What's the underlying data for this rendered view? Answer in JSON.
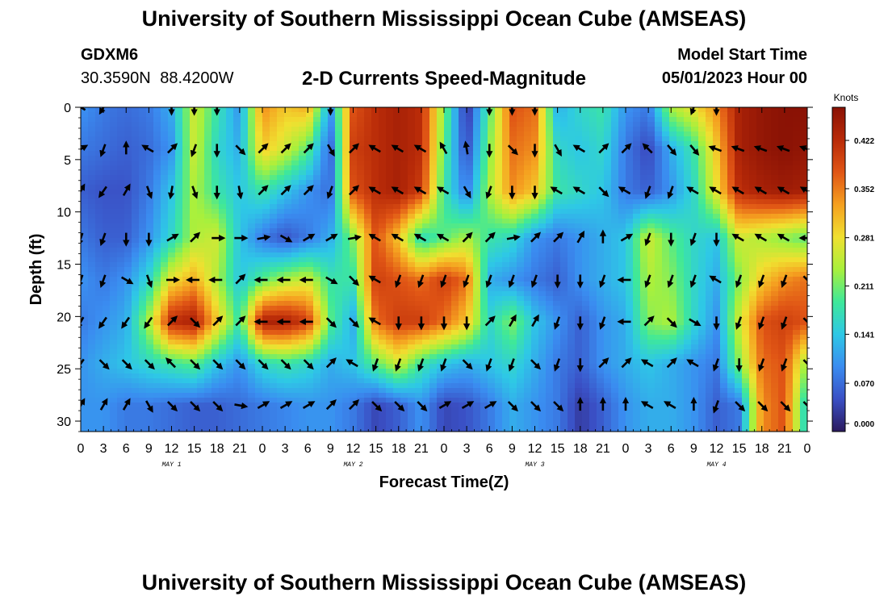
{
  "header": {
    "title": "University of Southern Mississippi Ocean Cube (AMSEAS)",
    "station_id": "GDXM6",
    "coordinates": "30.3590N 88.4200W",
    "chart_title": "2-D Currents Speed-Magnitude",
    "model_start_label": "Model Start Time",
    "model_start_value": "05/01/2023 Hour 00"
  },
  "footer": {
    "title": "University of Southern Mississippi Ocean Cube (AMSEAS)"
  },
  "chart_data": {
    "type": "heatmap",
    "xlabel": "Forecast Time(Z)",
    "ylabel": "Depth (ft)",
    "x_ticks": [
      "0",
      "3",
      "6",
      "9",
      "12",
      "15",
      "18",
      "21",
      "0",
      "3",
      "6",
      "9",
      "12",
      "15",
      "18",
      "21",
      "0",
      "3",
      "6",
      "9",
      "12",
      "15",
      "18",
      "21",
      "0",
      "3",
      "6",
      "9",
      "12",
      "15",
      "18",
      "21",
      "0"
    ],
    "x_range_hours": [
      0,
      96
    ],
    "day_labels": [
      {
        "label": "MAY 1",
        "hour": 12
      },
      {
        "label": "MAY 2",
        "hour": 36
      },
      {
        "label": "MAY 3",
        "hour": 60
      },
      {
        "label": "MAY 4",
        "hour": 84
      }
    ],
    "y_ticks": [
      0,
      5,
      10,
      15,
      20,
      25,
      30
    ],
    "y_range_ft": [
      0,
      31
    ],
    "colorbar": {
      "unit": "Knots",
      "tick_labels": [
        "0.422",
        "0.352",
        "0.281",
        "0.211",
        "0.141",
        "0.070",
        "0.000"
      ],
      "vmin": 0.0,
      "vmax": 0.47,
      "colormap": [
        "#2b1a5e",
        "#3a4fc4",
        "#3a8cf0",
        "#2ec8e6",
        "#3ee89a",
        "#a8f03c",
        "#f0e030",
        "#f5a020",
        "#e05515",
        "#b82a08",
        "#8a1205"
      ]
    },
    "vector_depths_ft": [
      0,
      4,
      8,
      12.5,
      16.5,
      20.5,
      24.5,
      28.5
    ],
    "vector_hours": [
      0,
      3,
      6,
      9,
      12,
      15,
      18,
      21,
      24,
      27,
      30,
      33,
      36,
      39,
      42,
      45,
      48,
      51,
      54,
      57,
      60,
      63,
      66,
      69,
      72,
      75,
      78,
      81,
      84,
      87,
      90,
      93,
      96
    ],
    "speed_knots_by_depth": [
      [
        0.1,
        0.08,
        0.07,
        0.08,
        0.12,
        0.26,
        0.18,
        0.1,
        0.34,
        0.3,
        0.32,
        0.1,
        0.38,
        0.42,
        0.44,
        0.42,
        0.22,
        0.02,
        0.2,
        0.38,
        0.36,
        0.12,
        0.16,
        0.18,
        0.1,
        0.08,
        0.24,
        0.28,
        0.34,
        0.44,
        0.46,
        0.47,
        0.47
      ],
      [
        0.08,
        0.07,
        0.06,
        0.07,
        0.1,
        0.26,
        0.16,
        0.12,
        0.3,
        0.26,
        0.2,
        0.06,
        0.4,
        0.42,
        0.44,
        0.42,
        0.2,
        0.04,
        0.22,
        0.36,
        0.34,
        0.16,
        0.14,
        0.16,
        0.08,
        0.04,
        0.12,
        0.18,
        0.3,
        0.44,
        0.46,
        0.47,
        0.46
      ],
      [
        0.06,
        0.05,
        0.05,
        0.08,
        0.14,
        0.24,
        0.18,
        0.14,
        0.18,
        0.14,
        0.1,
        0.07,
        0.38,
        0.42,
        0.44,
        0.4,
        0.18,
        0.08,
        0.24,
        0.34,
        0.3,
        0.18,
        0.16,
        0.14,
        0.08,
        0.06,
        0.1,
        0.16,
        0.28,
        0.42,
        0.44,
        0.45,
        0.44
      ],
      [
        0.08,
        0.06,
        0.06,
        0.1,
        0.16,
        0.24,
        0.26,
        0.14,
        0.08,
        0.05,
        0.08,
        0.12,
        0.22,
        0.38,
        0.3,
        0.16,
        0.2,
        0.24,
        0.18,
        0.16,
        0.1,
        0.08,
        0.1,
        0.12,
        0.14,
        0.26,
        0.2,
        0.16,
        0.14,
        0.26,
        0.24,
        0.22,
        0.2
      ],
      [
        0.1,
        0.08,
        0.1,
        0.16,
        0.28,
        0.32,
        0.24,
        0.14,
        0.2,
        0.24,
        0.26,
        0.18,
        0.18,
        0.4,
        0.38,
        0.36,
        0.4,
        0.36,
        0.12,
        0.1,
        0.08,
        0.06,
        0.1,
        0.12,
        0.14,
        0.24,
        0.22,
        0.16,
        0.12,
        0.22,
        0.3,
        0.34,
        0.36
      ],
      [
        0.08,
        0.1,
        0.12,
        0.24,
        0.42,
        0.44,
        0.3,
        0.18,
        0.44,
        0.44,
        0.4,
        0.2,
        0.12,
        0.36,
        0.4,
        0.4,
        0.36,
        0.3,
        0.16,
        0.22,
        0.14,
        0.1,
        0.06,
        0.1,
        0.12,
        0.22,
        0.24,
        0.16,
        0.1,
        0.26,
        0.38,
        0.4,
        0.38
      ],
      [
        0.1,
        0.12,
        0.14,
        0.16,
        0.18,
        0.2,
        0.14,
        0.1,
        0.16,
        0.18,
        0.16,
        0.12,
        0.14,
        0.2,
        0.26,
        0.18,
        0.14,
        0.12,
        0.14,
        0.16,
        0.12,
        0.08,
        0.06,
        0.1,
        0.12,
        0.14,
        0.12,
        0.1,
        0.08,
        0.22,
        0.36,
        0.38,
        0.22
      ],
      [
        0.1,
        0.1,
        0.08,
        0.08,
        0.07,
        0.06,
        0.06,
        0.07,
        0.08,
        0.09,
        0.1,
        0.1,
        0.08,
        0.04,
        0.06,
        0.1,
        0.04,
        0.05,
        0.08,
        0.12,
        0.1,
        0.08,
        0.03,
        0.06,
        0.1,
        0.12,
        0.12,
        0.1,
        0.06,
        0.08,
        0.34,
        0.38,
        0.14
      ]
    ],
    "direction_deg_by_depth": [
      [
        300,
        210,
        null,
        null,
        180,
        180,
        180,
        null,
        null,
        null,
        null,
        180,
        null,
        null,
        null,
        null,
        null,
        null,
        180,
        180,
        180,
        null,
        null,
        null,
        null,
        null,
        null,
        200,
        180,
        null,
        null,
        null,
        null
      ],
      [
        60,
        200,
        0,
        300,
        45,
        200,
        180,
        135,
        45,
        45,
        45,
        150,
        45,
        300,
        300,
        300,
        330,
        350,
        180,
        135,
        180,
        150,
        300,
        45,
        45,
        315,
        140,
        140,
        290,
        290,
        290,
        290,
        290
      ],
      [
        30,
        215,
        30,
        160,
        190,
        160,
        180,
        170,
        45,
        45,
        45,
        200,
        45,
        300,
        300,
        300,
        300,
        150,
        200,
        180,
        180,
        300,
        300,
        135,
        300,
        200,
        200,
        300,
        300,
        300,
        300,
        300,
        300
      ],
      [
        200,
        200,
        180,
        180,
        60,
        45,
        90,
        90,
        80,
        120,
        60,
        60,
        80,
        300,
        300,
        300,
        300,
        45,
        45,
        80,
        45,
        45,
        30,
        0,
        60,
        200,
        180,
        200,
        180,
        300,
        300,
        300,
        270
      ],
      [
        200,
        200,
        120,
        160,
        90,
        270,
        270,
        45,
        270,
        270,
        270,
        120,
        135,
        300,
        200,
        200,
        200,
        200,
        200,
        200,
        200,
        180,
        180,
        200,
        270,
        200,
        200,
        200,
        300,
        200,
        200,
        200,
        135
      ],
      [
        210,
        215,
        215,
        215,
        45,
        135,
        45,
        45,
        270,
        270,
        270,
        135,
        135,
        300,
        180,
        180,
        180,
        180,
        45,
        30,
        30,
        200,
        180,
        200,
        270,
        45,
        135,
        120,
        180,
        200,
        200,
        200,
        135
      ],
      [
        215,
        135,
        135,
        135,
        315,
        135,
        135,
        135,
        135,
        135,
        135,
        45,
        300,
        200,
        200,
        200,
        200,
        135,
        200,
        200,
        135,
        200,
        180,
        45,
        45,
        300,
        45,
        300,
        200,
        180,
        200,
        200,
        135
      ],
      [
        30,
        30,
        30,
        150,
        135,
        135,
        135,
        100,
        60,
        60,
        60,
        45,
        45,
        135,
        135,
        135,
        60,
        60,
        60,
        135,
        135,
        135,
        0,
        0,
        0,
        300,
        300,
        0,
        200,
        135,
        135,
        135,
        135
      ]
    ]
  }
}
